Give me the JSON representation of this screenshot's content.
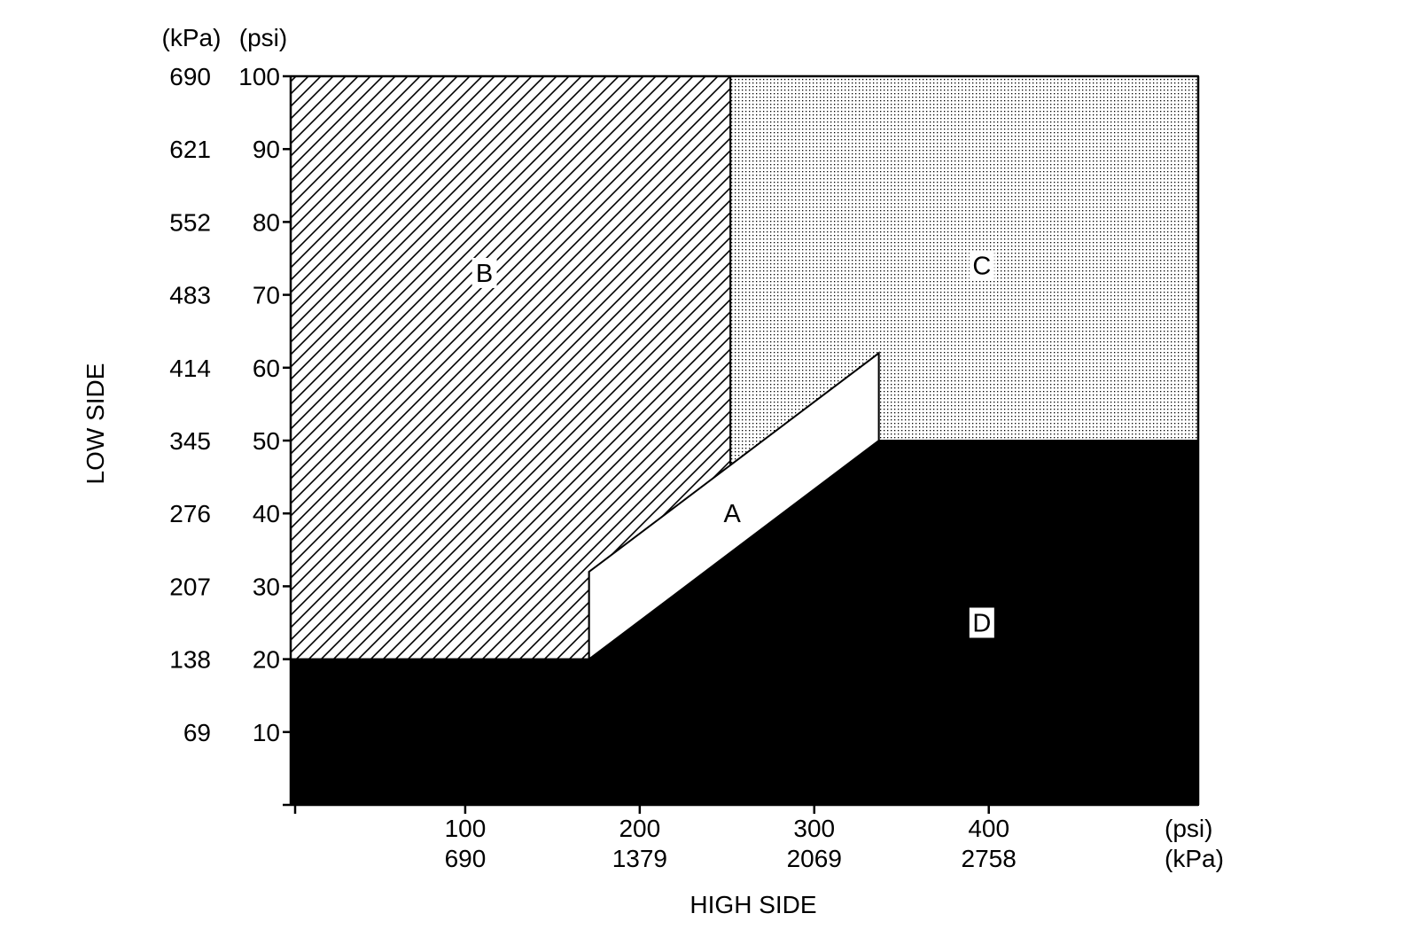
{
  "chart_data": {
    "type": "area",
    "title": "",
    "xlabel": "HIGH SIDE",
    "ylabel": "LOW SIDE",
    "x_unit_primary": "(psi)",
    "x_unit_secondary": "(kPa)",
    "y_unit_left": "(kPa)",
    "y_unit_right": "(psi)",
    "xlim": [
      0,
      520
    ],
    "ylim": [
      0,
      100
    ],
    "grid": false,
    "x_ticks": [
      {
        "psi": 100,
        "kpa": "690"
      },
      {
        "psi": 200,
        "kpa": "1379"
      },
      {
        "psi": 300,
        "kpa": "2069"
      },
      {
        "psi": 400,
        "kpa": "2758"
      }
    ],
    "y_ticks": [
      {
        "psi": 10,
        "kpa": "69"
      },
      {
        "psi": 20,
        "kpa": "138"
      },
      {
        "psi": 30,
        "kpa": "207"
      },
      {
        "psi": 40,
        "kpa": "276"
      },
      {
        "psi": 50,
        "kpa": "345"
      },
      {
        "psi": 60,
        "kpa": "414"
      },
      {
        "psi": 70,
        "kpa": "483"
      },
      {
        "psi": 80,
        "kpa": "552"
      },
      {
        "psi": 90,
        "kpa": "621"
      },
      {
        "psi": 100,
        "kpa": "690"
      }
    ],
    "regions": [
      {
        "label": "A",
        "fill": "#ffffff",
        "pattern": "none",
        "polygon": [
          [
            171,
            20
          ],
          [
            337,
            50
          ],
          [
            337,
            62
          ],
          [
            171,
            32
          ]
        ],
        "label_at": [
          253,
          40
        ]
      },
      {
        "label": "B",
        "fill": "#ffffff",
        "pattern": "diagonal-hatch",
        "polygon": [
          [
            0,
            20
          ],
          [
            171,
            20
          ],
          [
            171,
            32
          ],
          [
            252,
            46
          ],
          [
            252,
            100
          ],
          [
            0,
            100
          ]
        ],
        "label_at": [
          111,
          73
        ]
      },
      {
        "label": "C",
        "fill": "#ffffff",
        "pattern": "dots",
        "polygon": [
          [
            252,
            46
          ],
          [
            337,
            62
          ],
          [
            337,
            50
          ],
          [
            520,
            50
          ],
          [
            520,
            100
          ],
          [
            252,
            100
          ]
        ],
        "label_at": [
          396,
          74
        ]
      },
      {
        "label": "D",
        "fill": "#000000",
        "pattern": "solid",
        "polygon": [
          [
            0,
            0
          ],
          [
            520,
            0
          ],
          [
            520,
            50
          ],
          [
            337,
            50
          ],
          [
            171,
            20
          ],
          [
            0,
            20
          ]
        ],
        "label_at": [
          396,
          25
        ]
      }
    ]
  }
}
